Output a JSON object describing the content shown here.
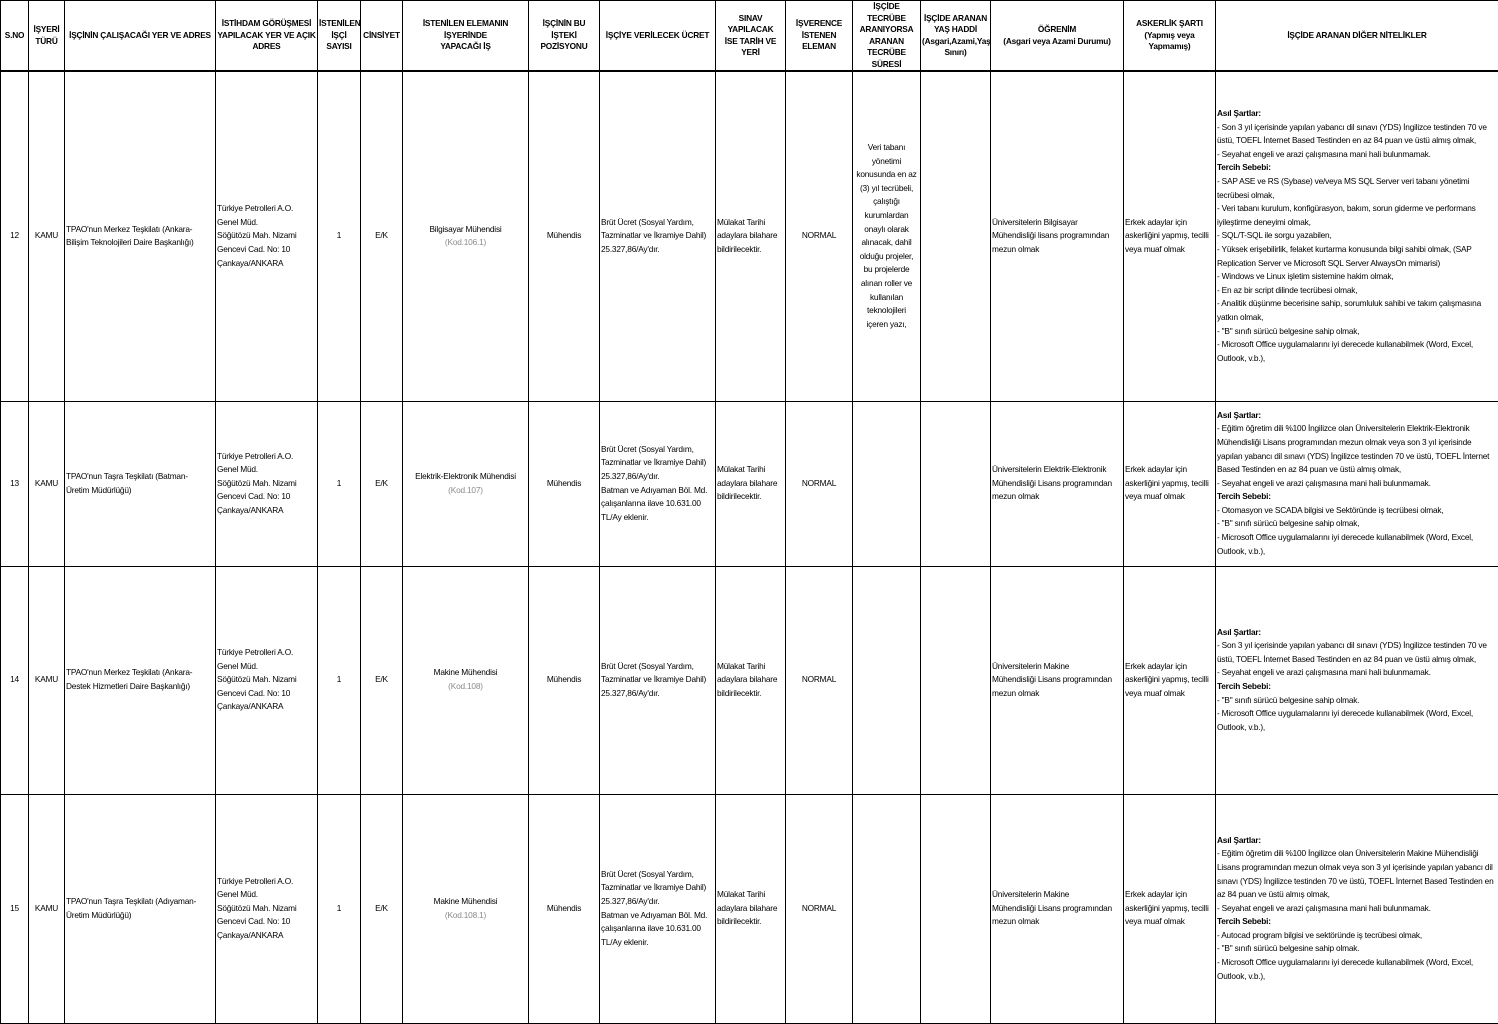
{
  "headers": [
    "S.NO",
    "İŞYERİ\nTÜRÜ",
    "İŞÇİNİN ÇALIŞACAĞI YER VE ADRES",
    "İSTİHDAM GÖRÜŞMESİ\nYAPILACAK YER VE AÇIK\nADRES",
    "İSTENİLEN\nİŞÇİ SAYISI",
    "CİNSİYET",
    "İSTENİLEN ELEMANIN İŞYERİNDE\nYAPACAĞI İŞ",
    "İŞÇİNİN BU İŞTEKİ\nPOZİSYONU",
    "İŞÇİYE VERİLECEK ÜCRET",
    "SINAV YAPILACAK\nİSE TARİH VE YERİ",
    "İŞVERENCE\nİSTENEN\nELEMAN",
    "İŞÇİDE TECRÜBE\nARANIYORSA\nARANAN\nTECRÜBE SÜRESİ",
    "İŞÇİDE ARANAN\nYAŞ HADDİ\n(Asgari,Azami,Yaş\nSınırı)",
    "ÖĞRENİM\n(Asgari veya Azami Durumu)",
    "ASKERLİK ŞARTI\n(Yapmış veya\nYapmamış)",
    "İŞÇİDE ARANAN DİĞER NİTELİKLER"
  ],
  "rows": [
    {
      "sno": "12",
      "tur": "KAMU",
      "yer": "TPAO'nun Merkez Teşkilatı (Ankara-\nBilişim Teknolojileri Daire Başkanlığı)",
      "gorusme": "Türkiye Petrolleri A.O.\nGenel Müd.\nSöğütözü Mah. Nizami\nGencevi Cad. No: 10\nÇankaya/ANKARA",
      "sayi": "1",
      "cinsiyet": "E/K",
      "is": "Bilgisayar Mühendisi",
      "kod": "(Kod.106.1)",
      "pozisyon": "Mühendis",
      "ucret": "Brüt Ücret (Sosyal Yardım,\nTazminatlar ve İkramiye Dahil)\n25.327,86/Ay'dır.",
      "sinav": "Mülakat Tarihi\nadaylara bilahare\nbildirilecektir.",
      "eleman": "NORMAL",
      "tecrube": "Veri tabanı\nyönetimi\nkonusunda en az\n(3) yıl tecrübeli,\nçalıştığı\nkurumlardan\nonaylı olarak\nalınacak, dahil\nolduğu projeler,\nbu projelerde\nalınan roller ve\nkullanılan\nteknolojileri\niçeren yazı,",
      "yas": "",
      "ogrenim": "Üniversitelerin Bilgisayar\nMühendisliği lisans programından\nmezun olmak",
      "askerlik": "Erkek adaylar için\naskerliğini yapmış, tecilli\nveya muaf olmak",
      "asil_baslik": "Asıl Şartlar:",
      "asil": "- Son 3 yıl içerisinde yapılan yabancı dil sınavı (YDS) İngilizce testinden 70 ve üstü, TOEFL İnternet Based Testinden en az 84 puan ve üstü almış olmak,\n- Seyahat engeli ve arazi çalışmasına mani hali bulunmamak.",
      "tercih_baslik": "Tercih Sebebi:",
      "tercih": "- SAP ASE ve RS (Sybase) ve/veya MS SQL Server veri tabanı yönetimi tecrübesi olmak,\n- Veri tabanı kurulum, konfigürasyon, bakım, sorun giderme ve performans iyileştirme deneyimi olmak,\n- SQL/T-SQL ile sorgu yazabilen,\n- Yüksek erişebilirlik, felaket kurtarma konusunda bilgi sahibi olmak, (SAP Replication Server ve Microsoft  SQL Server AlwaysOn mimarisi)\n- Windows ve Linux işletim sistemine hakim olmak,\n- En az bir script dilinde tecrübesi olmak,\n- Analitik düşünme becerisine sahip, sorumluluk sahibi ve takım çalışmasına yatkın olmak,\n- \"B\" sınıfı sürücü belgesine sahip olmak,\n- Microsoft Office uygulamalarını iyi derecede kullanabilmek (Word, Excel, Outlook, v.b.),"
    },
    {
      "sno": "13",
      "tur": "KAMU",
      "yer": "TPAO'nun Taşra Teşkilatı (Batman-\nÜretim Müdürlüğü)",
      "gorusme": "Türkiye Petrolleri A.O.\nGenel Müd.\nSöğütözü Mah. Nizami\nGencevi Cad. No: 10\nÇankaya/ANKARA",
      "sayi": "1",
      "cinsiyet": "E/K",
      "is": "Elektrik-Elektronik Mühendisi",
      "kod": "(Kod.107)",
      "pozisyon": "Mühendis",
      "ucret": "Brüt Ücret (Sosyal Yardım,\nTazminatlar ve İkramiye Dahil)\n25.327,86/Ay'dır.\nBatman ve Adıyaman Böl. Md.\nçalışanlarına ilave 10.631.00\nTL/Ay eklenir.",
      "sinav": "Mülakat Tarihi\nadaylara bilahare\nbildirilecektir.",
      "eleman": "NORMAL",
      "tecrube": "",
      "yas": "",
      "ogrenim": "Üniversitelerin Elektrik-Elektronik\nMühendisliği Lisans programından\nmezun olmak",
      "askerlik": "Erkek adaylar için\naskerliğini yapmış, tecilli\nveya muaf olmak",
      "asil_baslik": "Asıl Şartlar:",
      "asil": "- Eğitim öğretim dili %100 İngilizce olan Üniversitelerin Elektrik-Elektronik Mühendisliği Lisans programından mezun olmak veya son 3 yıl içerisinde yapılan yabancı dil sınavı (YDS) İngilizce testinden 70 ve üstü, TOEFL İnternet Based Testinden en az 84 puan ve üstü almış olmak,\n- Seyahat engeli ve arazi çalışmasına mani hali bulunmamak.",
      "tercih_baslik": "Tercih Sebebi:",
      "tercih": "- Otomasyon ve SCADA bilgisi ve Sektöründe iş tecrübesi olmak,\n- \"B\" sınıfı sürücü belgesine sahip olmak,\n- Microsoft Office uygulamalarını iyi derecede kullanabilmek (Word, Excel, Outlook, v.b.),"
    },
    {
      "sno": "14",
      "tur": "KAMU",
      "yer": "TPAO'nun Merkez Teşkilatı (Ankara-\nDestek Hizmetleri Daire Başkanlığı)",
      "gorusme": "Türkiye Petrolleri A.O.\nGenel Müd.\nSöğütözü Mah. Nizami\nGencevi Cad. No: 10\nÇankaya/ANKARA",
      "sayi": "1",
      "cinsiyet": "E/K",
      "is": "Makine Mühendisi",
      "kod": "(Kod.108)",
      "pozisyon": "Mühendis",
      "ucret": "Brüt Ücret (Sosyal Yardım,\nTazminatlar ve İkramiye Dahil)\n25.327,86/Ay'dır.",
      "sinav": "Mülakat Tarihi\nadaylara bilahare\nbildirilecektir.",
      "eleman": "NORMAL",
      "tecrube": "",
      "yas": "",
      "ogrenim": "Üniversitelerin Makine\nMühendisliği Lisans programından\nmezun olmak",
      "askerlik": "Erkek adaylar için\naskerliğini yapmış, tecilli\nveya muaf olmak",
      "asil_baslik": "Asıl Şartlar:",
      "asil": "- Son 3 yıl içerisinde yapılan yabancı dil sınavı (YDS) İngilizce testinden 70 ve üstü, TOEFL İnternet Based Testinden en az 84 puan ve üstü almış olmak,\n- Seyahat engeli ve arazi çalışmasına mani hali bulunmamak.",
      "tercih_baslik": "Tercih Sebebi:",
      "tercih": "- \"B\" sınıfı sürücü belgesine sahip olmak.\n- Microsoft Office uygulamalarını iyi derecede kullanabilmek (Word, Excel, Outlook, v.b.),"
    },
    {
      "sno": "15",
      "tur": "KAMU",
      "yer": "TPAO'nun  Taşra Teşkilatı (Adıyaman-\nÜretim Müdürlüğü)",
      "gorusme": "Türkiye Petrolleri A.O.\nGenel Müd.\nSöğütözü Mah. Nizami\nGencevi Cad. No: 10\nÇankaya/ANKARA",
      "sayi": "1",
      "cinsiyet": "E/K",
      "is": "Makine Mühendisi",
      "kod": "(Kod.108.1)",
      "pozisyon": "Mühendis",
      "ucret": "Brüt Ücret (Sosyal Yardım,\nTazminatlar ve İkramiye Dahil)\n25.327,86/Ay'dır.\nBatman ve Adıyaman Böl. Md.\nçalışanlarına ilave 10.631.00\nTL/Ay eklenir.",
      "sinav": "Mülakat Tarihi\nadaylara bilahare\nbildirilecektir.",
      "eleman": "NORMAL",
      "tecrube": "",
      "yas": "",
      "ogrenim": "Üniversitelerin Makine\nMühendisliği Lisans programından\nmezun olmak",
      "askerlik": "Erkek adaylar için\naskerliğini yapmış, tecilli\nveya muaf olmak",
      "asil_baslik": "Asıl Şartlar:",
      "asil": "- Eğitim öğretim dili %100 İngilizce olan Üniversitelerin Makine Mühendisliği Lisans programından mezun olmak veya son 3 yıl içerisinde yapılan yabancı dil sınavı (YDS) İngilizce testinden 70 ve üstü, TOEFL İnternet Based Testinden en az 84 puan ve üstü almış olmak,\n- Seyahat engeli ve arazi çalışmasına mani hali bulunmamak.",
      "tercih_baslik": "Tercih Sebebi:",
      "tercih": "- Autocad program bilgisi ve sektöründe iş tecrübesi olmak,\n- \"B\" sınıfı sürücü belgesine sahip olmak.\n- Microsoft Office uygulamalarını iyi derecede kullanabilmek (Word, Excel, Outlook, v.b.),"
    }
  ]
}
